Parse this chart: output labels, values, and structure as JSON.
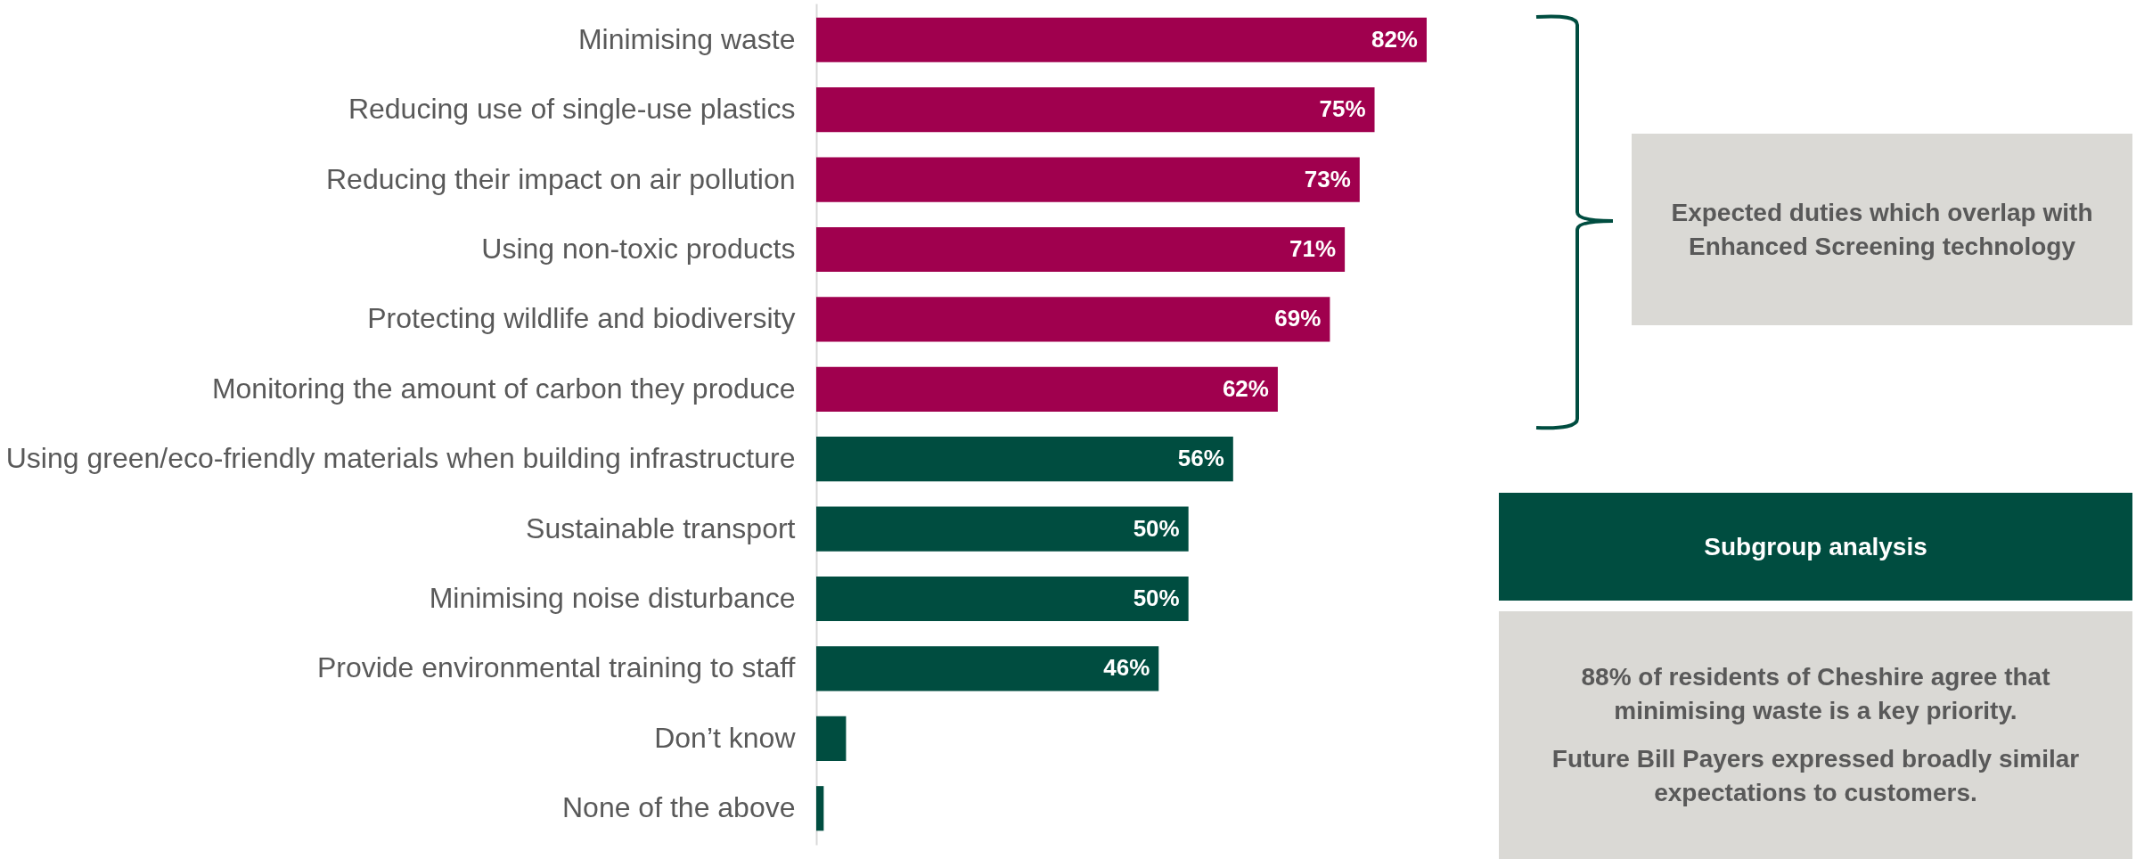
{
  "chart_data": {
    "type": "bar",
    "orientation": "horizontal",
    "categories": [
      "Minimising waste",
      "Reducing use of single-use plastics",
      "Reducing their impact on air pollution",
      "Using non-toxic products",
      "Protecting wildlife and biodiversity",
      "Monitoring the amount of carbon they produce",
      "Using green/eco-friendly materials when building infrastructure",
      "Sustainable transport",
      "Minimising noise disturbance",
      "Provide environmental training to staff",
      "Don’t know",
      "None of the above"
    ],
    "values": [
      82,
      75,
      73,
      71,
      69,
      62,
      56,
      50,
      50,
      46,
      4,
      1
    ],
    "value_labels": [
      "82%",
      "75%",
      "73%",
      "71%",
      "69%",
      "62%",
      "56%",
      "50%",
      "50%",
      "46%",
      null,
      null
    ],
    "colors": [
      "#a0004e",
      "#a0004e",
      "#a0004e",
      "#a0004e",
      "#a0004e",
      "#a0004e",
      "#004d40",
      "#004d40",
      "#004d40",
      "#004d40",
      "#004d40",
      "#004d40"
    ],
    "annotations": [
      "Expected duties which overlap with Enhanced Screening technology",
      "Subgroup analysis",
      "88% of residents of Cheshire agree that minimising waste is a key priority.",
      "Future Bill Payers expressed broadly similar expectations to customers."
    ]
  }
}
